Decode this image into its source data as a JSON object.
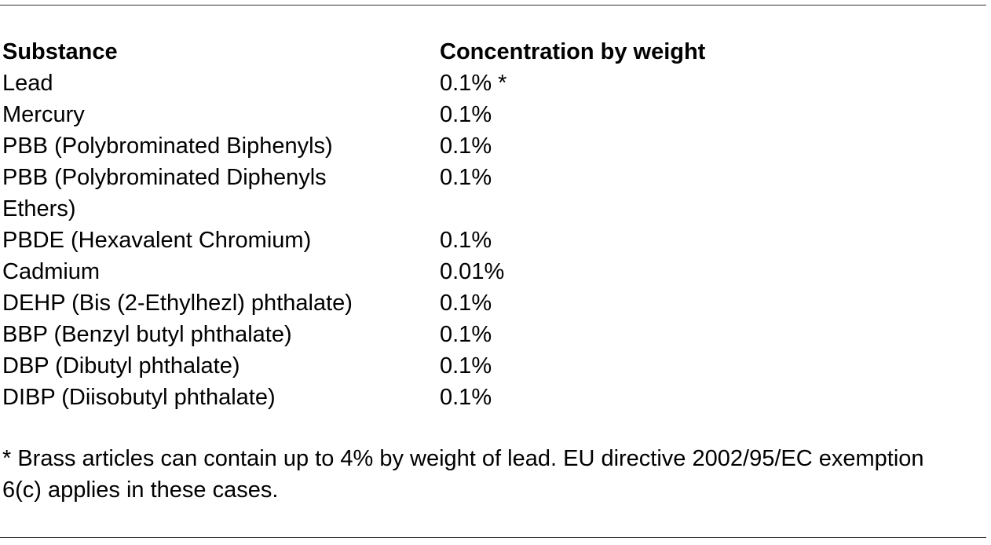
{
  "table": {
    "headers": {
      "substance": "Substance",
      "concentration": "Concentration by weight"
    },
    "rows": [
      {
        "substance": "Lead",
        "concentration": "0.1% *"
      },
      {
        "substance": "Mercury",
        "concentration": "0.1%"
      },
      {
        "substance": "PBB (Polybrominated Biphenyls)",
        "concentration": "0.1%"
      },
      {
        "substance": "PBB (Polybrominated Diphenyls Ethers)",
        "concentration": "0.1%"
      },
      {
        "substance": "PBDE (Hexavalent Chromium)",
        "concentration": "0.1%"
      },
      {
        "substance": "Cadmium",
        "concentration": "0.01%"
      },
      {
        "substance": "DEHP (Bis (2-Ethylhezl) phthalate)",
        "concentration": "0.1%"
      },
      {
        "substance": "BBP (Benzyl butyl phthalate)",
        "concentration": "0.1%"
      },
      {
        "substance": "DBP (Dibutyl phthalate)",
        "concentration": "0.1%"
      },
      {
        "substance": "DIBP (Diisobutyl phthalate)",
        "concentration": "0.1%"
      }
    ]
  },
  "footnote": "* Brass articles can contain up to 4% by weight of lead. EU directive 2002/95/EC exemption 6(c) applies in these cases."
}
